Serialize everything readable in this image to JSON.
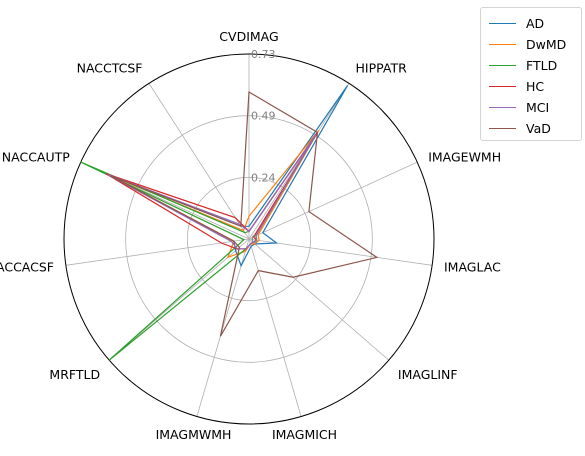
{
  "chart_data": {
    "type": "radar",
    "axes": [
      "CVDIMAG",
      "HIPPATR",
      "IMAGEWMH",
      "IMAGLAC",
      "IMAGLINF",
      "IMAGMICH",
      "IMAGMWMH",
      "MRFTLD",
      "NACCACSF",
      "NACCAUTP",
      "NACCTCSF"
    ],
    "rlim": [
      0,
      0.73
    ],
    "rticks": [
      "0",
      "0.24",
      "0.49",
      "0.73"
    ],
    "grid": true,
    "legend_position": "upper-right-outside",
    "series": [
      {
        "name": "AD",
        "color": "#1f77b4",
        "values": [
          0.05,
          0.72,
          0.06,
          0.11,
          0.03,
          0.03,
          0.11,
          0.07,
          0.06,
          0.61,
          0.06
        ]
      },
      {
        "name": "DwMD",
        "color": "#ff7f0e",
        "values": [
          0.09,
          0.51,
          0.04,
          0.04,
          0.03,
          0.02,
          0.05,
          0.11,
          0.06,
          0.6,
          0.04
        ]
      },
      {
        "name": "FTLD",
        "color": "#2ca02c",
        "values": [
          0.03,
          0.5,
          0.03,
          0.03,
          0.02,
          0.02,
          0.04,
          0.73,
          0.02,
          0.73,
          0.03
        ]
      },
      {
        "name": "HC",
        "color": "#d62728",
        "values": [
          0.03,
          0.5,
          0.02,
          0.03,
          0.02,
          0.02,
          0.04,
          0.06,
          0.11,
          0.62,
          0.1
        ]
      },
      {
        "name": "MCI",
        "color": "#9467bd",
        "values": [
          0.03,
          0.49,
          0.03,
          0.03,
          0.02,
          0.02,
          0.04,
          0.06,
          0.07,
          0.61,
          0.07
        ]
      },
      {
        "name": "VaD",
        "color": "#8c564b",
        "values": [
          0.58,
          0.5,
          0.26,
          0.51,
          0.23,
          0.13,
          0.4,
          0.05,
          0.06,
          0.6,
          0.06
        ]
      }
    ]
  }
}
